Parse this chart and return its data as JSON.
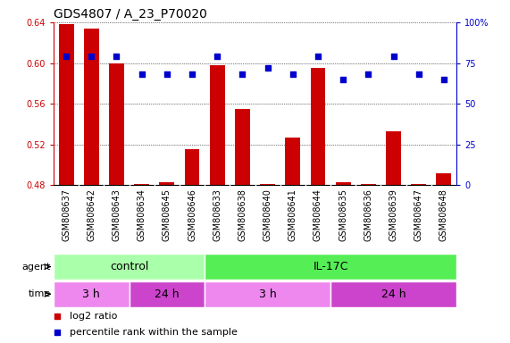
{
  "title": "GDS4807 / A_23_P70020",
  "samples": [
    "GSM808637",
    "GSM808642",
    "GSM808643",
    "GSM808634",
    "GSM808645",
    "GSM808646",
    "GSM808633",
    "GSM808638",
    "GSM808640",
    "GSM808641",
    "GSM808644",
    "GSM808635",
    "GSM808636",
    "GSM808639",
    "GSM808647",
    "GSM808648"
  ],
  "log2_ratio": [
    0.638,
    0.634,
    0.6,
    0.481,
    0.483,
    0.515,
    0.598,
    0.555,
    0.481,
    0.527,
    0.595,
    0.483,
    0.481,
    0.533,
    0.481,
    0.492
  ],
  "percentile": [
    79,
    79,
    79,
    68,
    68,
    68,
    79,
    68,
    72,
    68,
    79,
    65,
    68,
    79,
    68,
    65
  ],
  "bar_color": "#cc0000",
  "dot_color": "#0000cc",
  "ylim_left": [
    0.48,
    0.64
  ],
  "ylim_right": [
    0,
    100
  ],
  "yticks_left": [
    0.48,
    0.52,
    0.56,
    0.6,
    0.64
  ],
  "yticks_right": [
    0,
    25,
    50,
    75,
    100
  ],
  "ytick_labels_right": [
    "0",
    "25",
    "50",
    "75",
    "100%"
  ],
  "agent_groups": [
    {
      "label": "control",
      "start": 0,
      "end": 6,
      "color": "#aaffaa"
    },
    {
      "label": "IL-17C",
      "start": 6,
      "end": 16,
      "color": "#55ee55"
    }
  ],
  "time_groups": [
    {
      "label": "3 h",
      "start": 0,
      "end": 3,
      "color": "#ee88ee"
    },
    {
      "label": "24 h",
      "start": 3,
      "end": 6,
      "color": "#cc44cc"
    },
    {
      "label": "3 h",
      "start": 6,
      "end": 11,
      "color": "#ee88ee"
    },
    {
      "label": "24 h",
      "start": 11,
      "end": 16,
      "color": "#cc44cc"
    }
  ],
  "background_color": "#ffffff",
  "grid_color": "#000000",
  "title_fontsize": 10,
  "tick_fontsize": 7,
  "label_fontsize": 8,
  "band_fontsize": 9
}
